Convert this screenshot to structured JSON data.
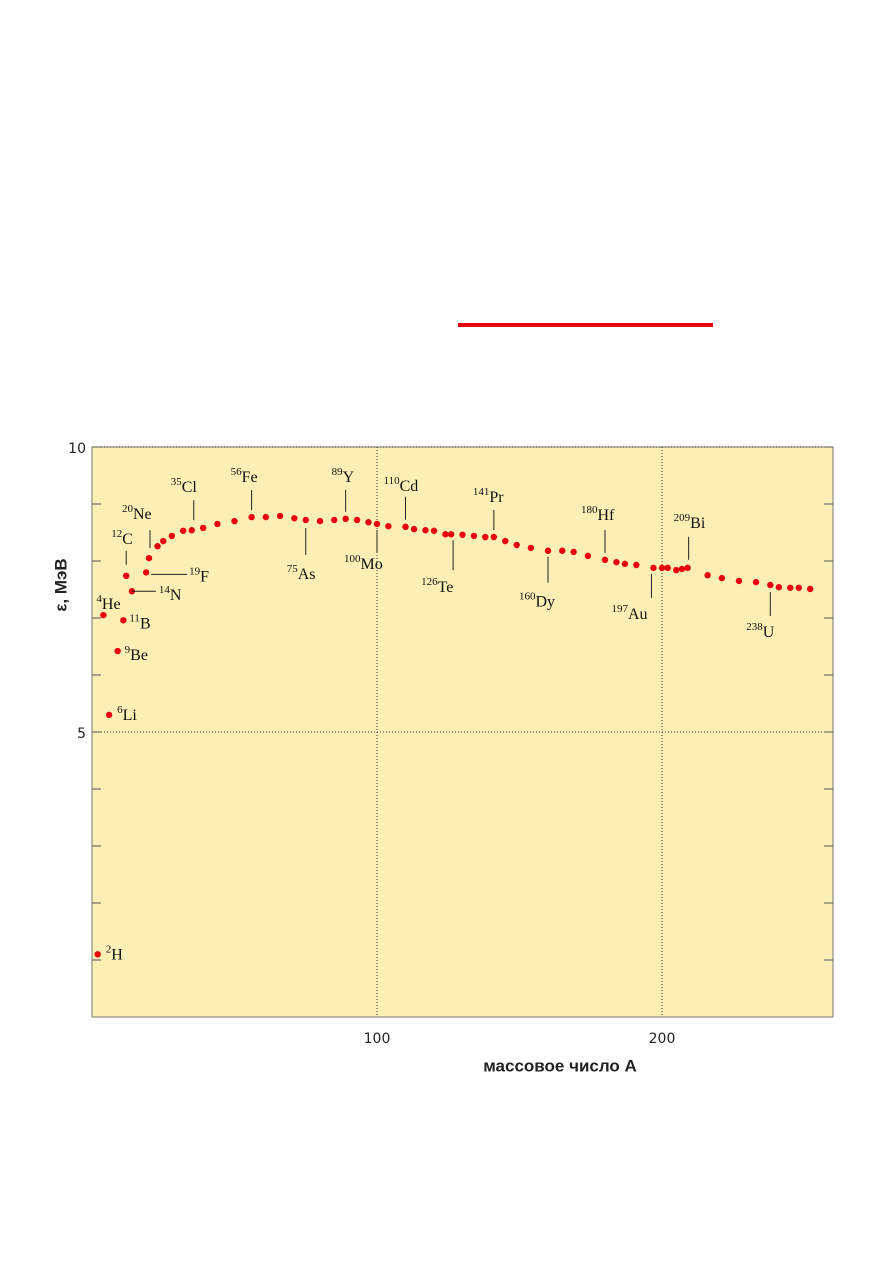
{
  "chart_data": {
    "type": "scatter",
    "x_label": "массовое число A",
    "y_label": "ε, МэВ",
    "xlim": [
      0,
      260
    ],
    "ylim": [
      0,
      10
    ],
    "xticks": [
      100,
      200
    ],
    "yticks": [
      5,
      10
    ],
    "yminor_ticks": [
      1,
      2,
      3,
      4,
      6,
      7,
      8,
      9
    ],
    "grid": true,
    "series": [
      {
        "color": "#e8000b",
        "x": [
          2,
          6,
          9,
          4,
          11,
          12,
          14,
          19,
          20,
          35,
          56,
          75,
          89,
          100,
          110,
          126,
          141,
          160,
          180,
          197,
          209,
          238
        ],
        "values": [
          1.1,
          5.3,
          6.42,
          7.05,
          6.96,
          7.74,
          7.47,
          7.8,
          8.05,
          8.54,
          8.77,
          8.72,
          8.74,
          8.65,
          8.6,
          8.47,
          8.42,
          8.18,
          8.02,
          7.88,
          7.88,
          7.58
        ],
        "symbols": [
          "H",
          "Li",
          "Be",
          "He",
          "B",
          "C",
          "N",
          "F",
          "Ne",
          "Cl",
          "Fe",
          "As",
          "Y",
          "Mo",
          "Cd",
          "Te",
          "Pr",
          "Dy",
          "Hf",
          "Au",
          "Bi",
          "U"
        ]
      },
      {
        "color": "#e8000b",
        "x": [
          23,
          25,
          28,
          32,
          39,
          44,
          50,
          61,
          66,
          71,
          80,
          85,
          93,
          97,
          104,
          113,
          117,
          120,
          124,
          130,
          134,
          138,
          145,
          149,
          154,
          165,
          169,
          174,
          184,
          187,
          191,
          200,
          202,
          205,
          207,
          216,
          221,
          227,
          233,
          241,
          245,
          248,
          252
        ],
        "values": [
          8.26,
          8.35,
          8.44,
          8.53,
          8.58,
          8.65,
          8.7,
          8.77,
          8.79,
          8.75,
          8.7,
          8.72,
          8.72,
          8.68,
          8.61,
          8.56,
          8.54,
          8.53,
          8.47,
          8.46,
          8.44,
          8.42,
          8.35,
          8.28,
          8.23,
          8.18,
          8.16,
          8.09,
          7.98,
          7.95,
          7.93,
          7.88,
          7.88,
          7.84,
          7.86,
          7.75,
          7.7,
          7.65,
          7.63,
          7.54,
          7.53,
          7.53,
          7.51
        ]
      }
    ]
  }
}
